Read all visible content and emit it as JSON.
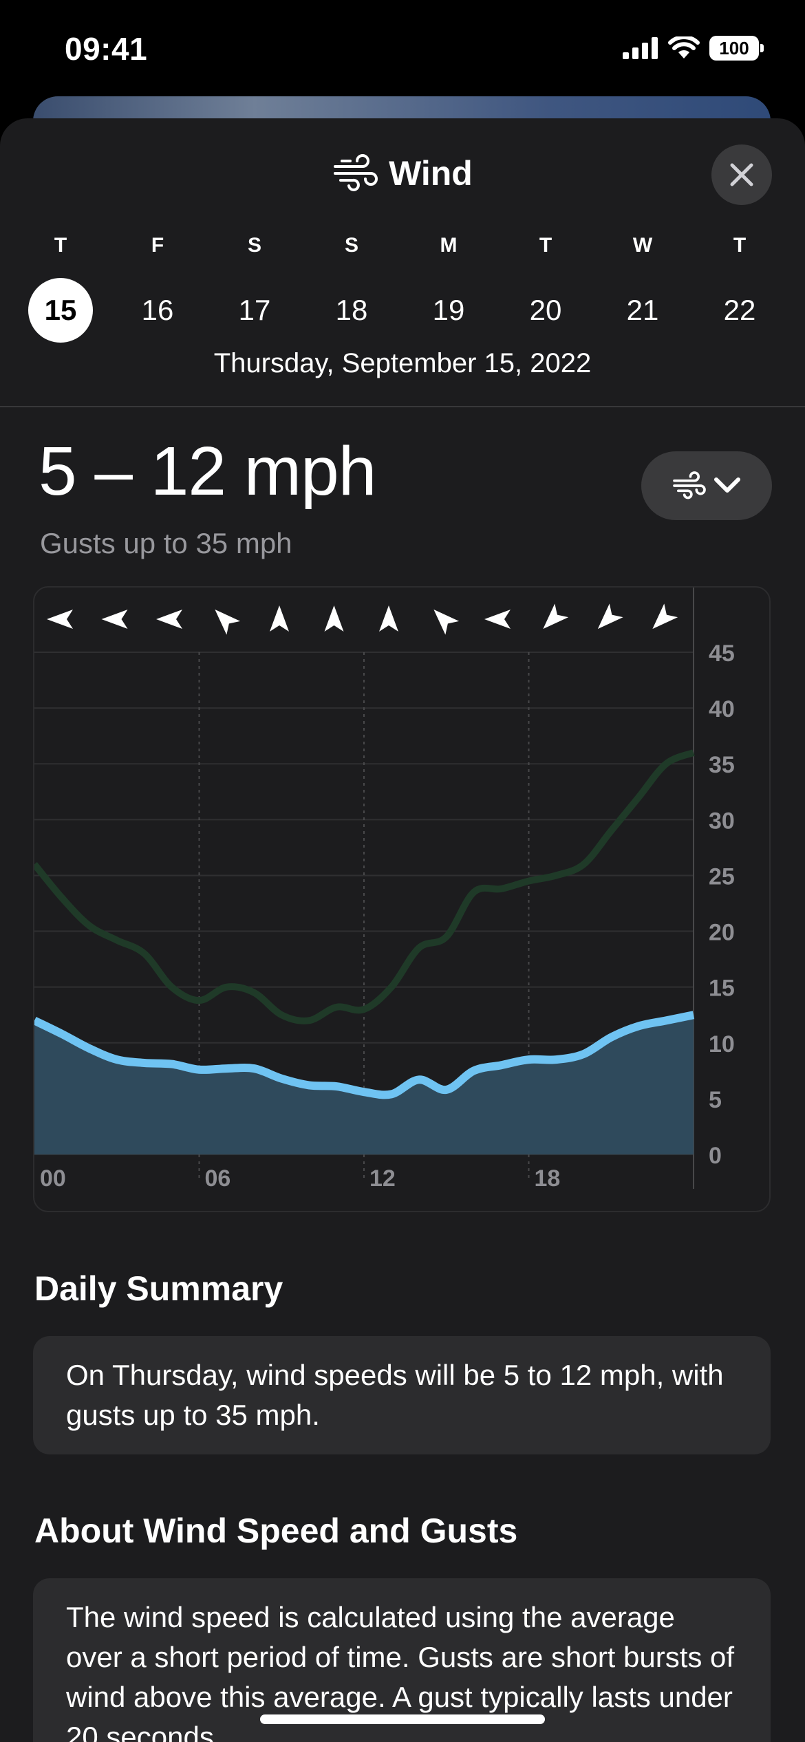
{
  "status": {
    "time": "09:41",
    "battery": "100"
  },
  "header": {
    "title": "Wind",
    "icon": "wind-icon",
    "close_icon": "close-icon"
  },
  "days": [
    {
      "letter": "T",
      "num": "15",
      "selected": true
    },
    {
      "letter": "F",
      "num": "16"
    },
    {
      "letter": "S",
      "num": "17"
    },
    {
      "letter": "S",
      "num": "18"
    },
    {
      "letter": "M",
      "num": "19"
    },
    {
      "letter": "T",
      "num": "20"
    },
    {
      "letter": "W",
      "num": "21"
    },
    {
      "letter": "T",
      "num": "22"
    }
  ],
  "date_label": "Thursday, September 15, 2022",
  "summary": {
    "range": "5 – 12 mph",
    "gusts": "Gusts up to 35 mph"
  },
  "chart_data": {
    "type": "area",
    "x_ticks": [
      "00",
      "06",
      "12",
      "18"
    ],
    "y_ticks": [
      "0",
      "5",
      "10",
      "15",
      "20",
      "25",
      "30",
      "35",
      "40",
      "45"
    ],
    "ylim": [
      0,
      45
    ],
    "x_range_hours": [
      0,
      24
    ],
    "grid": true,
    "colors": {
      "wind": "#6fc3f2",
      "wind_fill": "#2f4a5c",
      "gust": "#1f3a28"
    },
    "direction_arrows": [
      "W",
      "W",
      "W",
      "NW",
      "N",
      "N",
      "N",
      "NW",
      "W",
      "SW",
      "SW",
      "SW"
    ],
    "series": [
      {
        "key": "wind",
        "x": [
          0,
          1,
          2,
          3,
          4,
          5,
          6,
          7,
          8,
          9,
          10,
          11,
          12,
          13,
          14,
          15,
          16,
          17,
          18,
          19,
          20,
          21,
          22,
          23,
          24
        ],
        "y": [
          12,
          10.8,
          9.5,
          8.5,
          8.2,
          8.1,
          7.6,
          7.7,
          7.7,
          6.8,
          6.2,
          6.1,
          5.6,
          5.4,
          6.7,
          5.8,
          7.5,
          8,
          8.5,
          8.5,
          9,
          10.5,
          11.5,
          12,
          12.5
        ]
      },
      {
        "key": "gust",
        "x": [
          0,
          1,
          2,
          3,
          4,
          5,
          6,
          7,
          8,
          9,
          10,
          11,
          12,
          13,
          14,
          15,
          16,
          17,
          18,
          19,
          20,
          21,
          22,
          23,
          24
        ],
        "y": [
          26,
          23,
          20.5,
          19.2,
          18,
          15,
          13.8,
          15,
          14.5,
          12.5,
          12,
          13.2,
          13,
          15,
          18.5,
          19.5,
          23.5,
          23.8,
          24.5,
          25,
          26,
          29,
          32,
          35,
          36
        ]
      }
    ]
  },
  "daily_summary": {
    "title": "Daily Summary",
    "text": "On Thursday, wind speeds will be 5 to 12 mph, with gusts up to 35 mph."
  },
  "about": {
    "title": "About Wind Speed and Gusts",
    "text": "The wind speed is calculated using the average over a short period of time. Gusts are short bursts of wind above this average. A gust typically lasts under 20 seconds."
  }
}
